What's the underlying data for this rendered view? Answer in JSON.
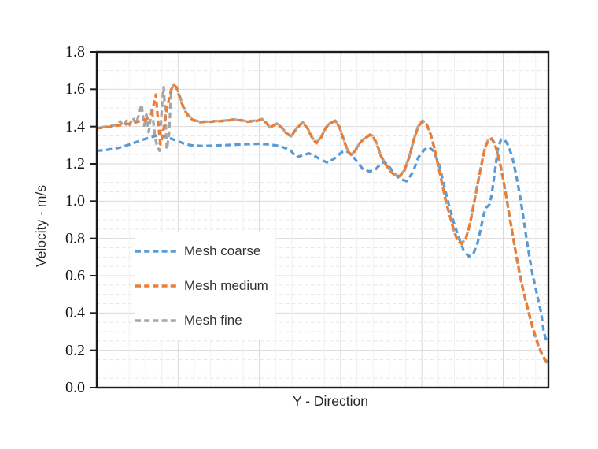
{
  "chart_data": {
    "type": "line",
    "title": "",
    "xlabel": "Y - Direction",
    "ylabel": "Velocity - m/s",
    "x_axis_note": "no x tick labels shown; x values are normalized 0-1 across the plot width",
    "ylim": [
      0,
      1.8
    ],
    "y_major_unit": 0.2,
    "y_minor_unit": 0.05,
    "y_ticks": [
      "0.0",
      "0.2",
      "0.4",
      "0.6",
      "0.8",
      "1.0",
      "1.2",
      "1.4",
      "1.6",
      "1.8"
    ],
    "grid": {
      "major_color": "#d9d9d9",
      "minor_color": "#f1f1f1",
      "minor_h_dashed": true
    },
    "legend_position": "inside-left",
    "series": [
      {
        "name": "Mesh coarse",
        "color": "#5B9BD5",
        "style": "dashed",
        "points": [
          [
            0.0,
            1.27
          ],
          [
            0.021,
            1.275
          ],
          [
            0.047,
            1.285
          ],
          [
            0.068,
            1.3
          ],
          [
            0.085,
            1.315
          ],
          [
            0.103,
            1.33
          ],
          [
            0.12,
            1.343
          ],
          [
            0.134,
            1.352
          ],
          [
            0.148,
            1.348
          ],
          [
            0.162,
            1.337
          ],
          [
            0.176,
            1.325
          ],
          [
            0.192,
            1.31
          ],
          [
            0.207,
            1.3
          ],
          [
            0.23,
            1.296
          ],
          [
            0.256,
            1.297
          ],
          [
            0.282,
            1.3
          ],
          [
            0.308,
            1.303
          ],
          [
            0.334,
            1.306
          ],
          [
            0.361,
            1.308
          ],
          [
            0.381,
            1.304
          ],
          [
            0.399,
            1.298
          ],
          [
            0.416,
            1.286
          ],
          [
            0.43,
            1.27
          ],
          [
            0.442,
            1.235
          ],
          [
            0.456,
            1.246
          ],
          [
            0.47,
            1.256
          ],
          [
            0.484,
            1.24
          ],
          [
            0.498,
            1.22
          ],
          [
            0.512,
            1.206
          ],
          [
            0.528,
            1.232
          ],
          [
            0.542,
            1.262
          ],
          [
            0.552,
            1.27
          ],
          [
            0.564,
            1.25
          ],
          [
            0.577,
            1.21
          ],
          [
            0.589,
            1.172
          ],
          [
            0.603,
            1.16
          ],
          [
            0.615,
            1.165
          ],
          [
            0.627,
            1.195
          ],
          [
            0.636,
            1.212
          ],
          [
            0.646,
            1.19
          ],
          [
            0.658,
            1.15
          ],
          [
            0.672,
            1.118
          ],
          [
            0.686,
            1.107
          ],
          [
            0.7,
            1.155
          ],
          [
            0.712,
            1.235
          ],
          [
            0.725,
            1.275
          ],
          [
            0.735,
            1.29
          ],
          [
            0.746,
            1.268
          ],
          [
            0.758,
            1.195
          ],
          [
            0.768,
            1.095
          ],
          [
            0.779,
            0.985
          ],
          [
            0.791,
            0.88
          ],
          [
            0.803,
            0.795
          ],
          [
            0.813,
            0.73
          ],
          [
            0.824,
            0.703
          ],
          [
            0.834,
            0.718
          ],
          [
            0.843,
            0.775
          ],
          [
            0.85,
            0.85
          ],
          [
            0.857,
            0.93
          ],
          [
            0.862,
            0.965
          ],
          [
            0.869,
            0.98
          ],
          [
            0.874,
            1.03
          ],
          [
            0.881,
            1.15
          ],
          [
            0.888,
            1.28
          ],
          [
            0.895,
            1.33
          ],
          [
            0.902,
            1.332
          ],
          [
            0.911,
            1.3
          ],
          [
            0.92,
            1.235
          ],
          [
            0.928,
            1.145
          ],
          [
            0.937,
            1.03
          ],
          [
            0.944,
            0.92
          ],
          [
            0.951,
            0.805
          ],
          [
            0.958,
            0.7
          ],
          [
            0.965,
            0.605
          ],
          [
            0.972,
            0.53
          ],
          [
            0.979,
            0.455
          ],
          [
            0.984,
            0.4
          ],
          [
            0.989,
            0.31
          ],
          [
            0.993,
            0.268
          ],
          [
            0.997,
            0.252
          ],
          [
            1.0,
            0.24
          ]
        ]
      },
      {
        "name": "Mesh medium",
        "color": "#ED7D31",
        "style": "dashed",
        "points": [
          [
            0.0,
            1.39
          ],
          [
            0.016,
            1.395
          ],
          [
            0.031,
            1.4
          ],
          [
            0.045,
            1.405
          ],
          [
            0.059,
            1.41
          ],
          [
            0.073,
            1.416
          ],
          [
            0.085,
            1.422
          ],
          [
            0.094,
            1.428
          ],
          [
            0.103,
            1.434
          ],
          [
            0.11,
            1.44
          ],
          [
            0.117,
            1.452
          ],
          [
            0.122,
            1.47
          ],
          [
            0.127,
            1.53
          ],
          [
            0.131,
            1.572
          ],
          [
            0.134,
            1.48
          ],
          [
            0.138,
            1.37
          ],
          [
            0.141,
            1.305
          ],
          [
            0.145,
            1.34
          ],
          [
            0.15,
            1.42
          ],
          [
            0.155,
            1.49
          ],
          [
            0.16,
            1.55
          ],
          [
            0.165,
            1.6
          ],
          [
            0.171,
            1.622
          ],
          [
            0.176,
            1.612
          ],
          [
            0.183,
            1.562
          ],
          [
            0.192,
            1.5
          ],
          [
            0.202,
            1.458
          ],
          [
            0.214,
            1.433
          ],
          [
            0.228,
            1.424
          ],
          [
            0.246,
            1.425
          ],
          [
            0.263,
            1.428
          ],
          [
            0.282,
            1.43
          ],
          [
            0.3,
            1.436
          ],
          [
            0.317,
            1.434
          ],
          [
            0.334,
            1.426
          ],
          [
            0.352,
            1.43
          ],
          [
            0.366,
            1.438
          ],
          [
            0.376,
            1.418
          ],
          [
            0.383,
            1.394
          ],
          [
            0.392,
            1.406
          ],
          [
            0.399,
            1.414
          ],
          [
            0.408,
            1.398
          ],
          [
            0.418,
            1.368
          ],
          [
            0.43,
            1.346
          ],
          [
            0.442,
            1.388
          ],
          [
            0.456,
            1.422
          ],
          [
            0.467,
            1.388
          ],
          [
            0.476,
            1.343
          ],
          [
            0.486,
            1.31
          ],
          [
            0.497,
            1.343
          ],
          [
            0.507,
            1.393
          ],
          [
            0.517,
            1.418
          ],
          [
            0.528,
            1.43
          ],
          [
            0.537,
            1.398
          ],
          [
            0.547,
            1.325
          ],
          [
            0.556,
            1.268
          ],
          [
            0.564,
            1.246
          ],
          [
            0.573,
            1.273
          ],
          [
            0.583,
            1.313
          ],
          [
            0.594,
            1.338
          ],
          [
            0.605,
            1.355
          ],
          [
            0.611,
            1.348
          ],
          [
            0.62,
            1.308
          ],
          [
            0.629,
            1.243
          ],
          [
            0.639,
            1.198
          ],
          [
            0.65,
            1.161
          ],
          [
            0.66,
            1.138
          ],
          [
            0.671,
            1.134
          ],
          [
            0.681,
            1.163
          ],
          [
            0.692,
            1.238
          ],
          [
            0.702,
            1.328
          ],
          [
            0.712,
            1.403
          ],
          [
            0.721,
            1.425
          ],
          [
            0.73,
            1.412
          ],
          [
            0.739,
            1.358
          ],
          [
            0.747,
            1.288
          ],
          [
            0.756,
            1.193
          ],
          [
            0.765,
            1.088
          ],
          [
            0.773,
            0.998
          ],
          [
            0.782,
            0.918
          ],
          [
            0.791,
            0.838
          ],
          [
            0.8,
            0.783
          ],
          [
            0.808,
            0.771
          ],
          [
            0.817,
            0.798
          ],
          [
            0.826,
            0.873
          ],
          [
            0.834,
            0.973
          ],
          [
            0.843,
            1.088
          ],
          [
            0.852,
            1.198
          ],
          [
            0.86,
            1.288
          ],
          [
            0.867,
            1.328
          ],
          [
            0.874,
            1.335
          ],
          [
            0.881,
            1.308
          ],
          [
            0.888,
            1.253
          ],
          [
            0.895,
            1.178
          ],
          [
            0.902,
            1.088
          ],
          [
            0.909,
            0.988
          ],
          [
            0.916,
            0.888
          ],
          [
            0.923,
            0.788
          ],
          [
            0.93,
            0.695
          ],
          [
            0.937,
            0.605
          ],
          [
            0.944,
            0.525
          ],
          [
            0.951,
            0.455
          ],
          [
            0.958,
            0.39
          ],
          [
            0.965,
            0.325
          ],
          [
            0.972,
            0.27
          ],
          [
            0.979,
            0.22
          ],
          [
            0.986,
            0.18
          ],
          [
            0.993,
            0.148
          ],
          [
            1.0,
            0.13
          ]
        ]
      },
      {
        "name": "Mesh fine",
        "color": "#A6A6A6",
        "style": "dashed",
        "points": [
          [
            0.0,
            1.393
          ],
          [
            0.016,
            1.398
          ],
          [
            0.031,
            1.403
          ],
          [
            0.045,
            1.41
          ],
          [
            0.052,
            1.428
          ],
          [
            0.059,
            1.402
          ],
          [
            0.066,
            1.432
          ],
          [
            0.073,
            1.408
          ],
          [
            0.08,
            1.448
          ],
          [
            0.087,
            1.415
          ],
          [
            0.094,
            1.47
          ],
          [
            0.099,
            1.52
          ],
          [
            0.105,
            1.405
          ],
          [
            0.11,
            1.465
          ],
          [
            0.115,
            1.37
          ],
          [
            0.122,
            1.498
          ],
          [
            0.129,
            1.345
          ],
          [
            0.134,
            1.29
          ],
          [
            0.139,
            1.27
          ],
          [
            0.145,
            1.54
          ],
          [
            0.148,
            1.612
          ],
          [
            0.152,
            1.455
          ],
          [
            0.155,
            1.278
          ],
          [
            0.16,
            1.36
          ],
          [
            0.165,
            1.6
          ],
          [
            0.171,
            1.625
          ],
          [
            0.176,
            1.618
          ],
          [
            0.183,
            1.568
          ],
          [
            0.192,
            1.505
          ],
          [
            0.202,
            1.462
          ],
          [
            0.214,
            1.436
          ],
          [
            0.228,
            1.426
          ],
          [
            0.246,
            1.427
          ],
          [
            0.263,
            1.43
          ],
          [
            0.282,
            1.432
          ],
          [
            0.3,
            1.438
          ],
          [
            0.317,
            1.436
          ],
          [
            0.334,
            1.428
          ],
          [
            0.352,
            1.432
          ],
          [
            0.366,
            1.44
          ],
          [
            0.376,
            1.42
          ],
          [
            0.383,
            1.396
          ],
          [
            0.392,
            1.408
          ],
          [
            0.399,
            1.416
          ],
          [
            0.408,
            1.4
          ],
          [
            0.418,
            1.37
          ],
          [
            0.43,
            1.348
          ],
          [
            0.442,
            1.39
          ],
          [
            0.456,
            1.424
          ],
          [
            0.467,
            1.39
          ],
          [
            0.476,
            1.345
          ],
          [
            0.486,
            1.312
          ],
          [
            0.497,
            1.345
          ],
          [
            0.507,
            1.395
          ],
          [
            0.517,
            1.42
          ],
          [
            0.528,
            1.432
          ],
          [
            0.537,
            1.4
          ],
          [
            0.547,
            1.33
          ],
          [
            0.556,
            1.27
          ],
          [
            0.564,
            1.248
          ],
          [
            0.573,
            1.275
          ],
          [
            0.583,
            1.315
          ],
          [
            0.594,
            1.34
          ],
          [
            0.605,
            1.357
          ],
          [
            0.611,
            1.35
          ],
          [
            0.62,
            1.31
          ],
          [
            0.629,
            1.245
          ],
          [
            0.639,
            1.2
          ],
          [
            0.65,
            1.163
          ],
          [
            0.66,
            1.14
          ],
          [
            0.671,
            1.136
          ],
          [
            0.681,
            1.165
          ],
          [
            0.692,
            1.24
          ],
          [
            0.702,
            1.33
          ],
          [
            0.712,
            1.405
          ],
          [
            0.721,
            1.432
          ],
          [
            0.73,
            1.415
          ],
          [
            0.739,
            1.36
          ],
          [
            0.747,
            1.29
          ],
          [
            0.756,
            1.195
          ],
          [
            0.765,
            1.09
          ],
          [
            0.773,
            1.0
          ],
          [
            0.782,
            0.92
          ],
          [
            0.791,
            0.84
          ],
          [
            0.8,
            0.785
          ],
          [
            0.808,
            0.773
          ],
          [
            0.817,
            0.8
          ],
          [
            0.826,
            0.875
          ],
          [
            0.834,
            0.975
          ],
          [
            0.843,
            1.09
          ],
          [
            0.852,
            1.2
          ],
          [
            0.86,
            1.29
          ],
          [
            0.867,
            1.33
          ],
          [
            0.874,
            1.337
          ],
          [
            0.881,
            1.31
          ],
          [
            0.888,
            1.255
          ],
          [
            0.895,
            1.18
          ],
          [
            0.902,
            1.09
          ],
          [
            0.909,
            0.99
          ],
          [
            0.916,
            0.89
          ],
          [
            0.923,
            0.79
          ],
          [
            0.93,
            0.69
          ],
          [
            0.937,
            0.6
          ],
          [
            0.944,
            0.52
          ],
          [
            0.951,
            0.45
          ],
          [
            0.958,
            0.385
          ],
          [
            0.965,
            0.32
          ],
          [
            0.972,
            0.265
          ],
          [
            0.979,
            0.215
          ],
          [
            0.986,
            0.175
          ],
          [
            0.993,
            0.143
          ],
          [
            1.0,
            0.125
          ]
        ]
      }
    ]
  }
}
